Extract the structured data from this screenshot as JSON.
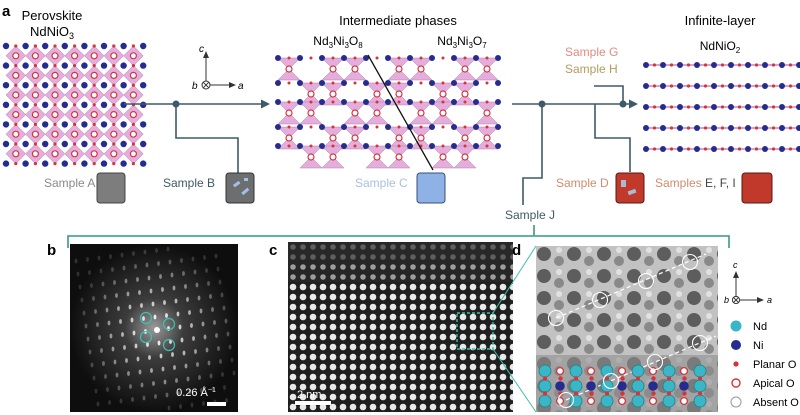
{
  "panel_labels": {
    "a": "a",
    "b": "b",
    "c": "c",
    "d": "d"
  },
  "stages": {
    "perovskite": {
      "title": "Perovskite",
      "formula_main": "NdNiO",
      "formula_sub": "3"
    },
    "intermediate": {
      "title": "Intermediate phases",
      "left": {
        "p1": "Nd",
        "s1": "3",
        "p2": "Ni",
        "s2": "3",
        "p3": "O",
        "s3": "8"
      },
      "right": {
        "p1": "Nd",
        "s1": "3",
        "p2": "Ni",
        "s2": "3",
        "p3": "O",
        "s3": "7"
      }
    },
    "infinite": {
      "title": "Infinite-layer",
      "formula_main": "NdNiO",
      "formula_sub": "2"
    }
  },
  "axes": {
    "c": "c",
    "b": "b",
    "a": "a"
  },
  "samples": {
    "a": "Sample A",
    "b": "Sample B",
    "c": "Sample C",
    "d": "Sample D",
    "efi_prefix": "Samples ",
    "efi_letters": "E, F, I",
    "g": "Sample G",
    "h": "Sample H",
    "j": "Sample J"
  },
  "scale_bars": {
    "b": "0.26 Å",
    "b_exp": "−1",
    "c": "2 nm"
  },
  "legend": {
    "nd": "Nd",
    "ni": "Ni",
    "planar_o": "Planar O",
    "apical_o": "Apical O",
    "absent_o": "Absent O"
  },
  "colors": {
    "nd": "#3ab7c6",
    "ni": "#252c8f",
    "oxygen": "#d8323b",
    "octahedron": "#e3aedb",
    "flow_line": "#3d5a6b",
    "bracket": "#4fa68e",
    "sample_a": "#8a8a8a",
    "sample_b": "#3d5a6b",
    "sample_c": "#a7c1e3",
    "sample_d": "#d28a6d",
    "sample_g": "#e48a80",
    "sample_h": "#b59a5e",
    "swatch_a": "#7d7d7d",
    "swatch_b": "#6c6e70",
    "swatch_c": "#8fb2e6",
    "swatch_red": "#c0392b"
  }
}
